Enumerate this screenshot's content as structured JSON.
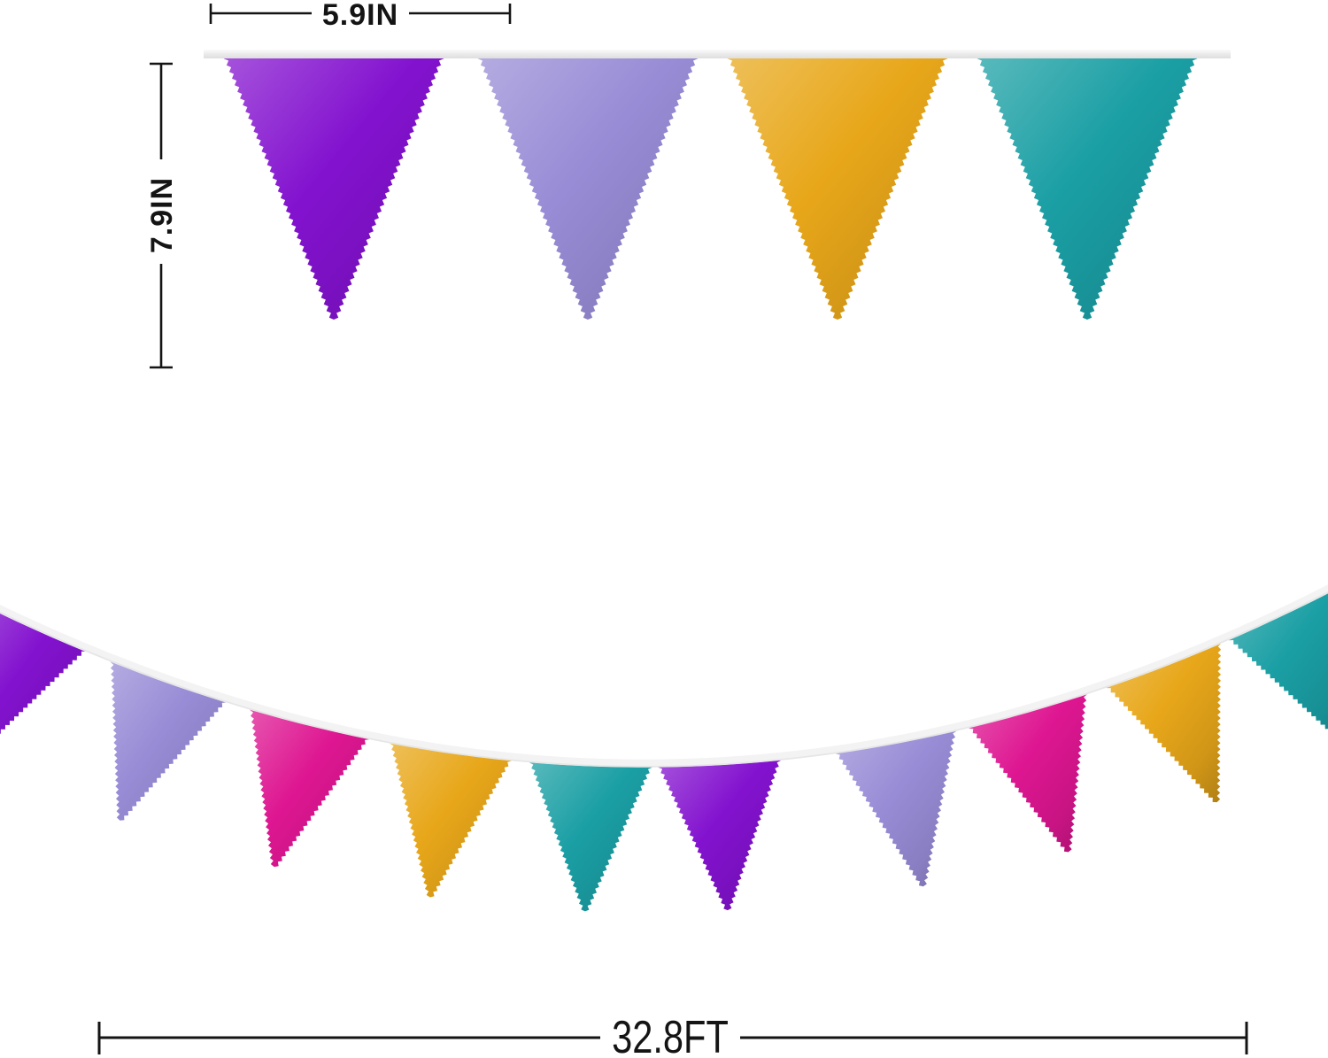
{
  "subject": "metallic foil triangle pennant bunting banner, dimension diagram",
  "annotations": {
    "width_label": "5.9IN",
    "height_label": "7.9IN",
    "length_label": "32.8FT"
  },
  "palette": {
    "purple": "#8312CF",
    "lavender": "#988CD6",
    "magenta": "#DE1691",
    "gold": "#E8A71A",
    "teal": "#1A9FA4"
  },
  "top_banner": {
    "flags": [
      "purple",
      "lavender",
      "gold",
      "teal"
    ],
    "ribbon_color": "#e9e9e9"
  },
  "bottom_banner": {
    "flags": [
      "purple",
      "lavender",
      "magenta",
      "gold",
      "teal",
      "purple",
      "lavender",
      "magenta",
      "gold",
      "teal"
    ],
    "string_color": "#f3f3f3"
  },
  "colors": {
    "dimension_line": "#141414",
    "background": "#ffffff"
  }
}
